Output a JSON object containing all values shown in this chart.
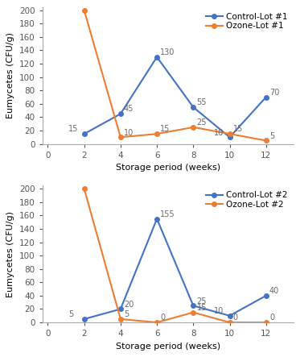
{
  "top": {
    "control_x": [
      2,
      4,
      6,
      8,
      10,
      12
    ],
    "control_y": [
      15,
      45,
      130,
      55,
      10,
      70
    ],
    "ozone_x": [
      2,
      4,
      6,
      8,
      10,
      12
    ],
    "ozone_y": [
      200,
      10,
      15,
      25,
      15,
      5
    ],
    "control_label": "Control-Lot #1",
    "ozone_label": "Ozone-Lot #1",
    "control_annots": [
      [
        2,
        15,
        "15",
        "left"
      ],
      [
        4,
        45,
        "45",
        "right"
      ],
      [
        6,
        130,
        "130",
        "right"
      ],
      [
        8,
        55,
        "55",
        "right"
      ],
      [
        10,
        10,
        "10",
        "left"
      ],
      [
        12,
        70,
        "70",
        "right"
      ]
    ],
    "ozone_annots": [
      [
        4,
        10,
        "10",
        "right"
      ],
      [
        6,
        15,
        "15",
        "right"
      ],
      [
        8,
        25,
        "25",
        "right"
      ],
      [
        10,
        15,
        "15",
        "right"
      ],
      [
        12,
        5,
        "5",
        "right"
      ]
    ],
    "ylabel": "Eumycetes (CFU/g)",
    "xlabel": "Storage period (weeks)",
    "ylim": [
      0,
      205
    ],
    "yticks": [
      0,
      20,
      40,
      60,
      80,
      100,
      120,
      140,
      160,
      180,
      200
    ],
    "xticks": [
      0,
      2,
      4,
      6,
      8,
      10,
      12
    ],
    "xlim": [
      -0.3,
      13.5
    ]
  },
  "bottom": {
    "control_x": [
      2,
      4,
      6,
      8,
      10,
      12
    ],
    "control_y": [
      5,
      20,
      155,
      25,
      10,
      40
    ],
    "ozone_x": [
      2,
      4,
      6,
      8,
      10,
      12
    ],
    "ozone_y": [
      200,
      5,
      0,
      15,
      0,
      0
    ],
    "control_label": "Control-Lot #2",
    "ozone_label": "Ozone-Lot #2",
    "control_annots": [
      [
        2,
        5,
        "5",
        "left"
      ],
      [
        4,
        20,
        "20",
        "right"
      ],
      [
        6,
        155,
        "155",
        "right"
      ],
      [
        8,
        25,
        "25",
        "right"
      ],
      [
        10,
        10,
        "10",
        "left"
      ],
      [
        12,
        40,
        "40",
        "right"
      ]
    ],
    "ozone_annots": [
      [
        4,
        5,
        "5",
        "right"
      ],
      [
        6,
        0,
        "0",
        "right"
      ],
      [
        8,
        15,
        "15",
        "right"
      ],
      [
        10,
        0,
        "0",
        "right"
      ],
      [
        12,
        0,
        "0",
        "right"
      ]
    ],
    "ylabel": "Eumycetes (CFU/g)",
    "xlabel": "Storage period (weeks)",
    "ylim": [
      0,
      205
    ],
    "yticks": [
      0,
      20,
      40,
      60,
      80,
      100,
      120,
      140,
      160,
      180,
      200
    ],
    "xticks": [
      0,
      2,
      4,
      6,
      8,
      10,
      12
    ],
    "xlim": [
      -0.3,
      13.5
    ]
  },
  "control_color": "#4472C4",
  "ozone_color": "#ED7D31",
  "annotation_fontsize": 7,
  "label_fontsize": 8,
  "tick_fontsize": 7.5,
  "legend_fontsize": 7.5,
  "marker": "o",
  "markersize": 4,
  "linewidth": 1.5
}
